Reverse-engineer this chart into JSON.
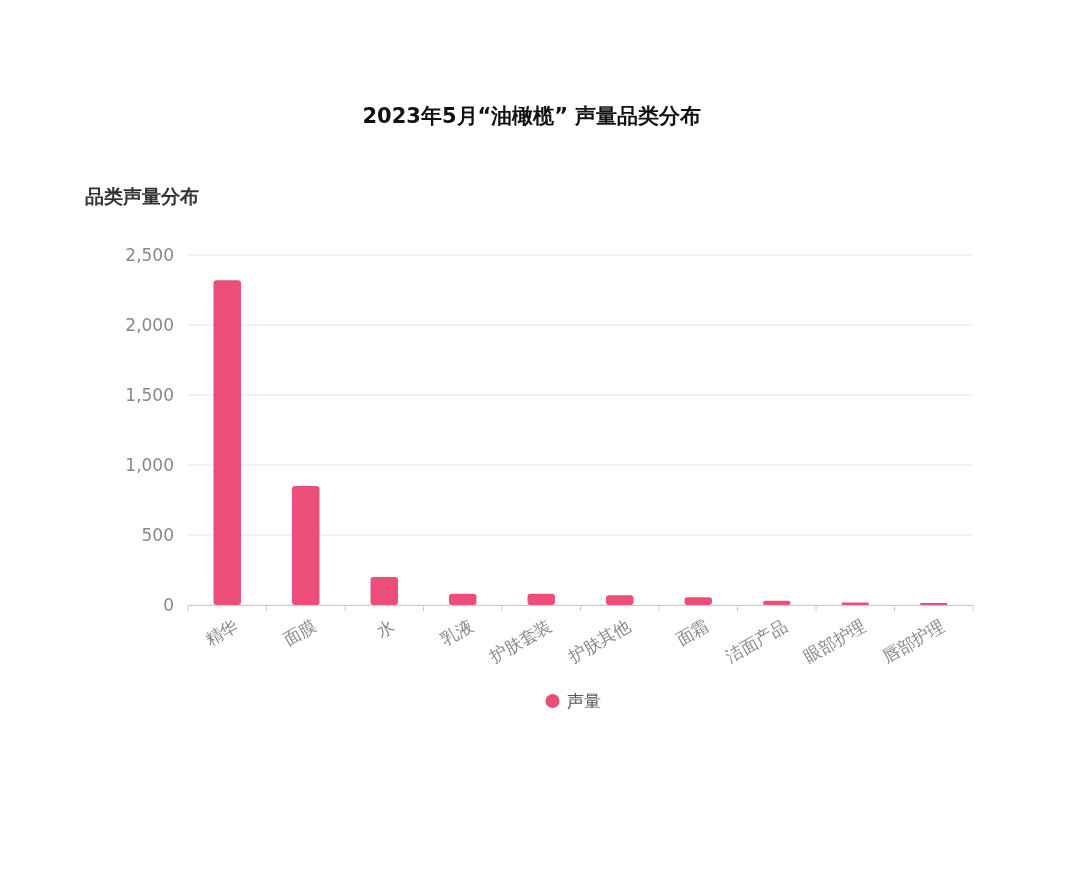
{
  "chart_data": {
    "type": "bar",
    "title": "2023年5月“油橄榄” 声量品类分布",
    "ylabel": "品类声量分布",
    "categories": [
      "精华",
      "面膜",
      "水",
      "乳液",
      "护肤套装",
      "护肤其他",
      "面霜",
      "洁面产品",
      "眼部护理",
      "唇部护理"
    ],
    "series": [
      {
        "name": "声量",
        "color": "#eb4f79",
        "values": [
          2320,
          850,
          200,
          80,
          80,
          70,
          55,
          30,
          18,
          15
        ]
      }
    ],
    "ylim": [
      0,
      2500
    ],
    "yticks": [
      0,
      {
        "value": 500,
        "label": "500"
      },
      {
        "value": 1000,
        "label": "1,000"
      },
      {
        "value": 1500,
        "label": "1,500"
      },
      {
        "value": 2000,
        "label": "2,000"
      },
      {
        "value": 2500,
        "label": "2,500"
      }
    ],
    "grid": "y",
    "legend": "bottom"
  }
}
